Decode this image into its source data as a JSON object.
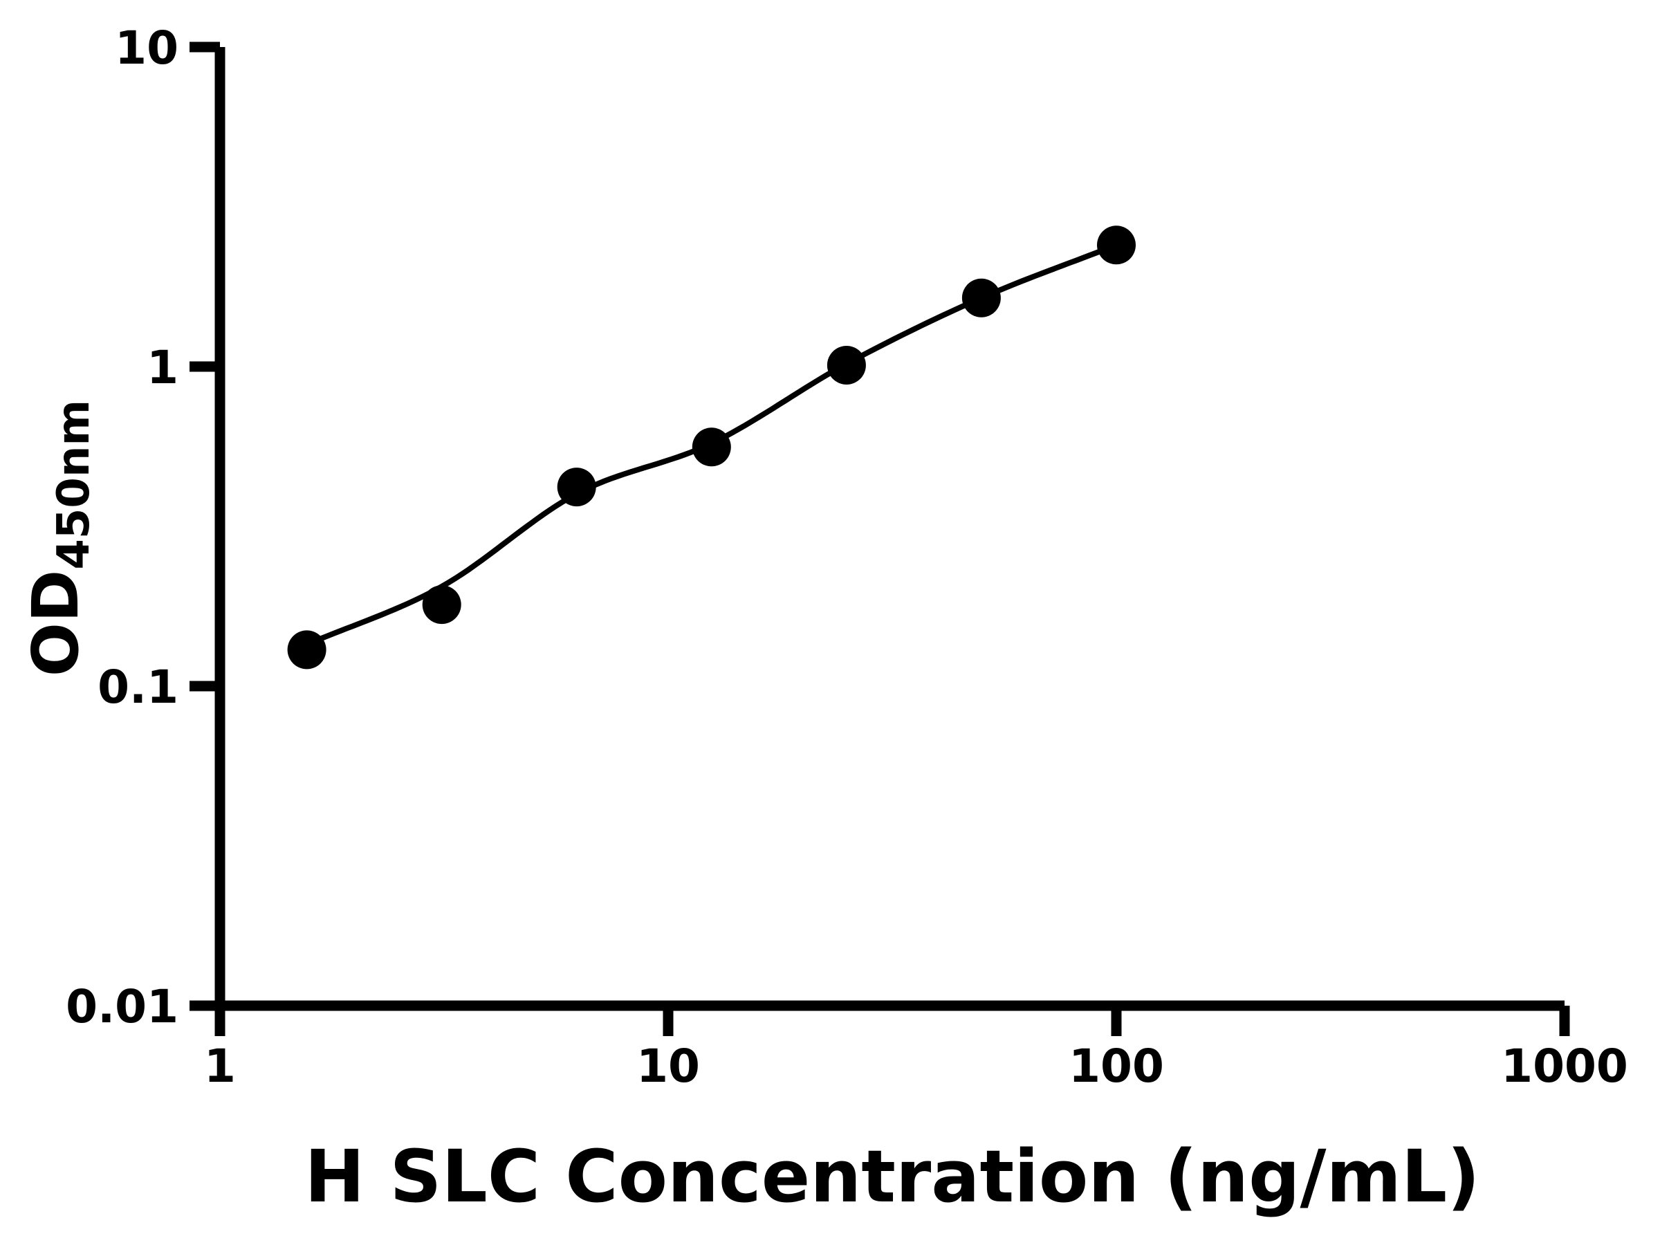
{
  "chart_data": {
    "type": "scatter",
    "title": "",
    "xlabel": "H SLC Concentration (ng/mL)",
    "ylabel_main": "OD",
    "ylabel_sub": "450nm",
    "x_scale": "log",
    "y_scale": "log",
    "xlim": [
      1,
      1000
    ],
    "ylim": [
      0.01,
      10
    ],
    "x_ticks": [
      {
        "value": 1,
        "label": "1"
      },
      {
        "value": 10,
        "label": "10"
      },
      {
        "value": 100,
        "label": "100"
      },
      {
        "value": 1000,
        "label": "1000"
      }
    ],
    "y_ticks": [
      {
        "value": 0.01,
        "label": "0.01"
      },
      {
        "value": 0.1,
        "label": "0.1"
      },
      {
        "value": 1,
        "label": "1"
      },
      {
        "value": 10,
        "label": "10"
      }
    ],
    "grid": false,
    "legend": null,
    "series": [
      {
        "name": "standard-curve-points",
        "marker": "filled-circle",
        "points": [
          {
            "x": 1.5625,
            "y": 0.13
          },
          {
            "x": 3.125,
            "y": 0.18
          },
          {
            "x": 6.25,
            "y": 0.42
          },
          {
            "x": 12.5,
            "y": 0.56
          },
          {
            "x": 25,
            "y": 1.01
          },
          {
            "x": 50,
            "y": 1.64
          },
          {
            "x": 100,
            "y": 2.4
          }
        ]
      }
    ],
    "fit_curve": {
      "name": "four-parameter-logistic-fit",
      "waypoints": [
        {
          "x": 1.5625,
          "y": 0.135
        },
        {
          "x": 3.125,
          "y": 0.205
        },
        {
          "x": 6.25,
          "y": 0.4
        },
        {
          "x": 12.5,
          "y": 0.575
        },
        {
          "x": 25,
          "y": 1.02
        },
        {
          "x": 50,
          "y": 1.64
        },
        {
          "x": 100,
          "y": 2.4
        }
      ]
    },
    "colors": {
      "background": "#ffffff",
      "axis": "#000000",
      "points": "#000000",
      "curve": "#000000",
      "text": "#000000"
    }
  }
}
